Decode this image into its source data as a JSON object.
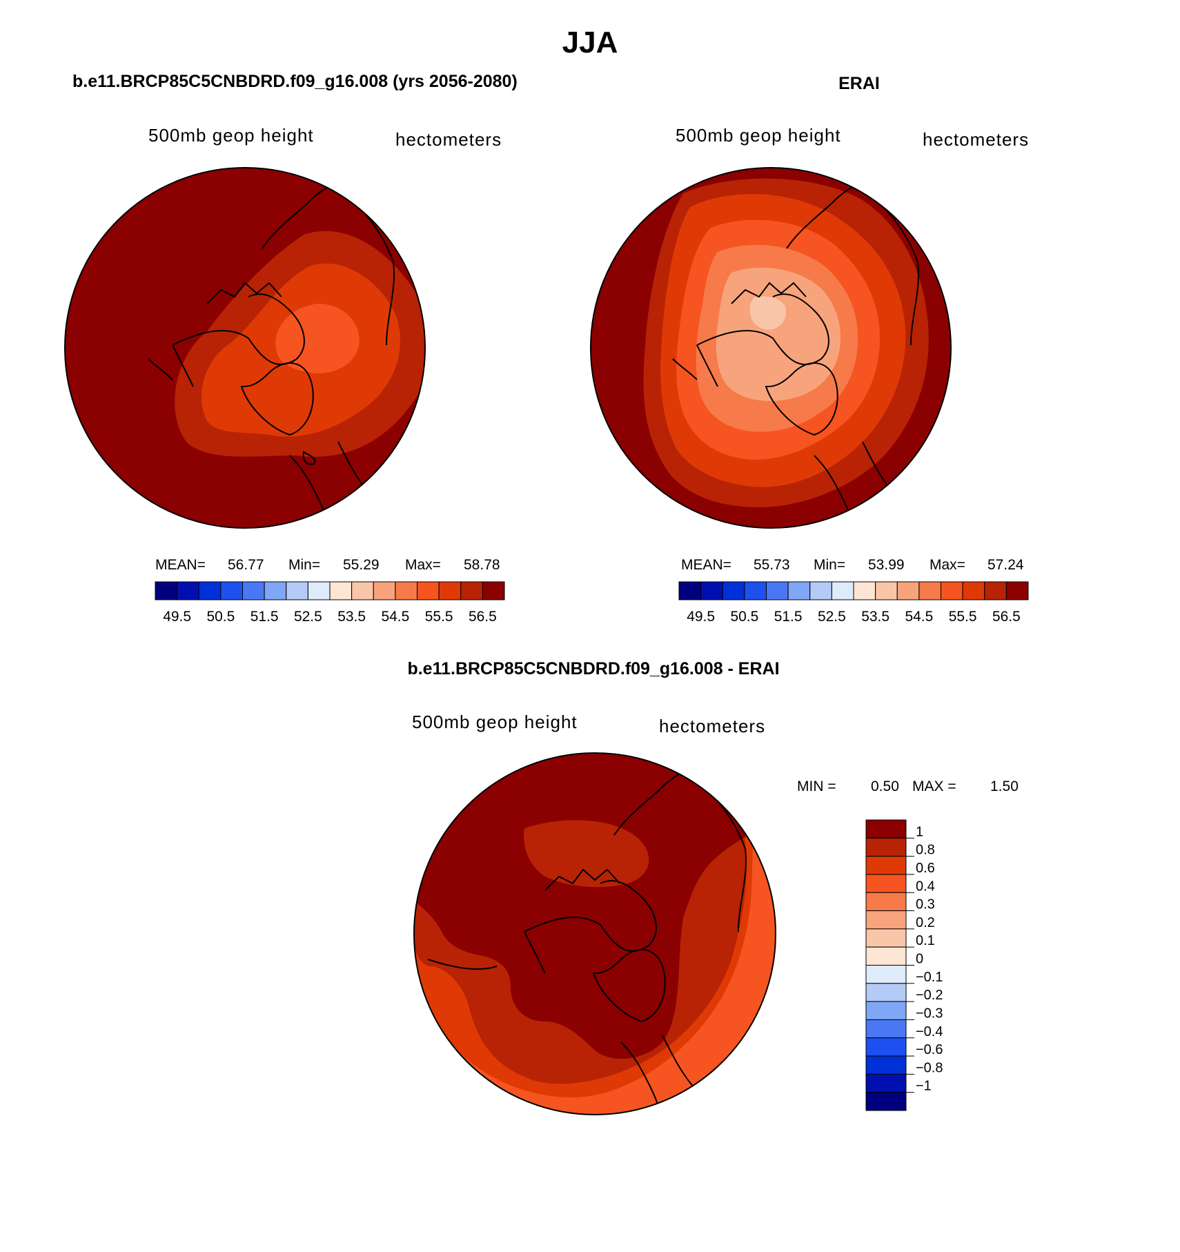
{
  "page_title": "JJA",
  "colors": {
    "scale": [
      "#00007f",
      "#0010b0",
      "#0030d8",
      "#1e50f0",
      "#4a78f4",
      "#80a6f6",
      "#b4cbf7",
      "#ddebfb",
      "#fde6d3",
      "#fac6aa",
      "#f7a47c",
      "#f77a4a",
      "#f65420",
      "#df3a05",
      "#b72304",
      "#8b0000"
    ],
    "coastline": "#000000"
  },
  "panels": [
    {
      "title": "b.e11.BRCP85C5CNBDRD.f09_g16.008 (yrs 2056-2080)",
      "variable": "500mb geop height",
      "units": "hectometers",
      "stats": {
        "mean_label": "MEAN=",
        "mean": "56.77",
        "min_label": "Min=",
        "min": "55.29",
        "max_label": "Max=",
        "max": "58.78"
      },
      "colorbar_ticks": [
        "49.5",
        "50.5",
        "51.5",
        "52.5",
        "53.5",
        "54.5",
        "55.5",
        "56.5"
      ]
    },
    {
      "title": "ERAI",
      "variable": "500mb geop height",
      "units": "hectometers",
      "stats": {
        "mean_label": "MEAN=",
        "mean": "55.73",
        "min_label": "Min=",
        "min": "53.99",
        "max_label": "Max=",
        "max": "57.24"
      },
      "colorbar_ticks": [
        "49.5",
        "50.5",
        "51.5",
        "52.5",
        "53.5",
        "54.5",
        "55.5",
        "56.5"
      ]
    },
    {
      "title": "b.e11.BRCP85C5CNBDRD.f09_g16.008 - ERAI",
      "variable": "500mb geop height",
      "units": "hectometers",
      "stats": {
        "min_label": "MIN =",
        "min": "0.50",
        "max_label": "MAX =",
        "max": "1.50"
      },
      "colorbar_ticks": [
        "1",
        "0.8",
        "0.6",
        "0.4",
        "0.3",
        "0.2",
        "0.1",
        "0",
        "−0.1",
        "−0.2",
        "−0.3",
        "−0.4",
        "−0.6",
        "−0.8",
        "−1"
      ]
    }
  ],
  "chart_data": [
    {
      "type": "heatmap",
      "projection": "polar stereographic (north pole)",
      "title": "b.e11.BRCP85C5CNBDRD.f09_g16.008 (yrs 2056-2080)",
      "variable": "500mb geop height",
      "units": "hectometers",
      "contour_levels": [
        49.5,
        50.0,
        50.5,
        51.0,
        51.5,
        52.0,
        52.5,
        53.0,
        53.5,
        54.0,
        54.5,
        55.0,
        55.5,
        56.0,
        56.5
      ],
      "mean": 56.77,
      "min": 55.29,
      "max": 58.78,
      "field_levels_centre_to_edge": [
        55.5,
        56.0,
        56.5
      ]
    },
    {
      "type": "heatmap",
      "projection": "polar stereographic (north pole)",
      "title": "ERAI",
      "variable": "500mb geop height",
      "units": "hectometers",
      "contour_levels": [
        49.5,
        50.0,
        50.5,
        51.0,
        51.5,
        52.0,
        52.5,
        53.0,
        53.5,
        54.0,
        54.5,
        55.0,
        55.5,
        56.0,
        56.5
      ],
      "mean": 55.73,
      "min": 53.99,
      "max": 57.24,
      "field_levels_centre_to_edge": [
        53.5,
        54.0,
        54.5,
        55.0,
        55.5,
        56.0,
        56.5
      ]
    },
    {
      "type": "heatmap",
      "projection": "polar stereographic (north pole)",
      "title": "b.e11.BRCP85C5CNBDRD.f09_g16.008 - ERAI",
      "variable": "500mb geop height",
      "units": "hectometers",
      "contour_levels": [
        -1,
        -0.8,
        -0.6,
        -0.4,
        -0.3,
        -0.2,
        -0.1,
        0,
        0.1,
        0.2,
        0.3,
        0.4,
        0.6,
        0.8,
        1
      ],
      "min": 0.5,
      "max": 1.5,
      "field_levels_present": [
        0.4,
        0.6,
        0.8,
        1
      ]
    }
  ]
}
